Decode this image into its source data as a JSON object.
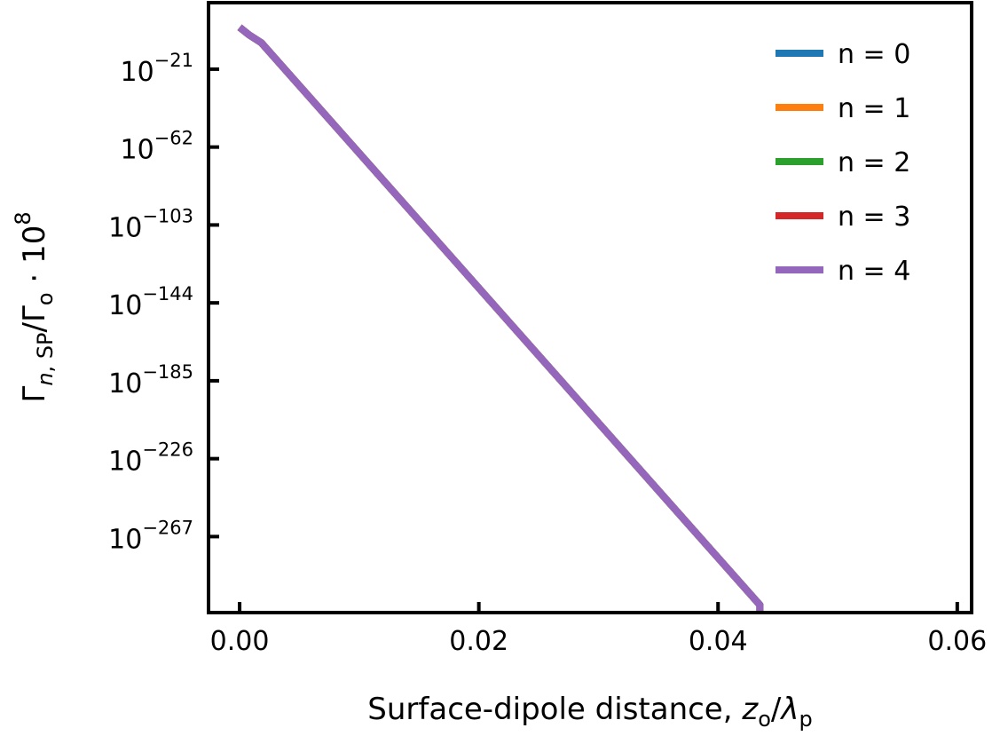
{
  "chart_data": {
    "type": "line",
    "title": "",
    "xlabel": {
      "main": "Surface-dipole distance, ",
      "var": "z",
      "var_sub": "o",
      "slash": "/",
      "var2": "λ",
      "var2_sub": "p"
    },
    "ylabel": {
      "gamma1": "Γ",
      "sub1_italic": "n",
      "sub1_rest": ", SP",
      "slash": "/",
      "gamma2": "Γ",
      "sub2": "o",
      "dot": " · ",
      "base": "10",
      "exp": "8"
    },
    "xlim": [
      -0.0026,
      0.0612
    ],
    "ylim": [
      -307,
      14
    ],
    "y_scale": "log10",
    "x_ticks": [
      {
        "value": 0.0,
        "label": "0.00"
      },
      {
        "value": 0.02,
        "label": "0.02"
      },
      {
        "value": 0.04,
        "label": "0.04"
      },
      {
        "value": 0.06,
        "label": "0.06"
      }
    ],
    "y_ticks": [
      {
        "exponent": -21,
        "base": "10",
        "exp": "−21"
      },
      {
        "exponent": -62,
        "base": "10",
        "exp": "−62"
      },
      {
        "exponent": -103,
        "base": "10",
        "exp": "−103"
      },
      {
        "exponent": -144,
        "base": "10",
        "exp": "−144"
      },
      {
        "exponent": -185,
        "base": "10",
        "exp": "−185"
      },
      {
        "exponent": -226,
        "base": "10",
        "exp": "−226"
      },
      {
        "exponent": -267,
        "base": "10",
        "exp": "−267"
      }
    ],
    "grid": false,
    "legend_position": "top-right",
    "series": [
      {
        "name": "n = 0",
        "color": "#1f77b4",
        "x": [
          0.0,
          0.0008,
          0.0018,
          0.0435,
          0.0435
        ],
        "y_log10": [
          1,
          -3,
          -7,
          -303,
          -325
        ]
      },
      {
        "name": "n = 1",
        "color": "#ff7f0e",
        "x": [
          0.0,
          0.0008,
          0.0018,
          0.0435,
          0.0435
        ],
        "y_log10": [
          1,
          -3,
          -7,
          -303,
          -325
        ]
      },
      {
        "name": "n = 2",
        "color": "#2ca02c",
        "x": [
          0.0,
          0.0008,
          0.0018,
          0.0435,
          0.0435
        ],
        "y_log10": [
          1,
          -3,
          -7,
          -303,
          -325
        ]
      },
      {
        "name": "n = 3",
        "color": "#d62728",
        "x": [
          0.0,
          0.0008,
          0.0018,
          0.0435,
          0.0435
        ],
        "y_log10": [
          1,
          -3,
          -7,
          -303,
          -325
        ]
      },
      {
        "name": "n = 4",
        "color": "#9467bd",
        "x": [
          0.0,
          0.0008,
          0.0018,
          0.0435,
          0.0435
        ],
        "y_log10": [
          1,
          -3,
          -7,
          -303,
          -325
        ]
      }
    ]
  }
}
